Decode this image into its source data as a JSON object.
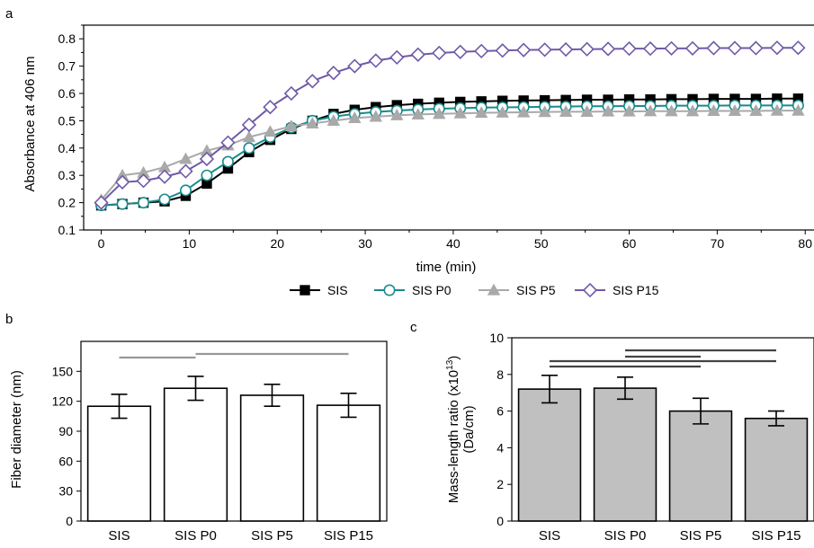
{
  "chart_data": [
    {
      "panel": "a",
      "type": "line",
      "xlabel": "time (min)",
      "ylabel": "Absorbance at 406 nm",
      "xlim": [
        -2,
        81
      ],
      "ylim": [
        0.1,
        0.85
      ],
      "xticks": [
        "0",
        "10",
        "20",
        "30",
        "40",
        "50",
        "60",
        "70",
        "80"
      ],
      "yticks": [
        "0.1",
        "0.2",
        "0.3",
        "0.4",
        "0.5",
        "0.6",
        "0.7",
        "0.8"
      ],
      "legend_position": "bottom",
      "x": [
        0,
        2.4,
        4.8,
        7.2,
        9.6,
        12,
        14.4,
        16.8,
        19.2,
        21.6,
        24,
        26.4,
        28.8,
        31.2,
        33.6,
        36,
        38.4,
        40.8,
        43.2,
        45.6,
        48,
        50.4,
        52.8,
        55.2,
        57.6,
        60,
        62.4,
        64.8,
        67.2,
        69.6,
        72,
        74.4,
        76.8,
        79.2,
        81.6
      ],
      "series": [
        {
          "name": "SIS",
          "marker": "square-filled",
          "color": "#000000",
          "values": [
            0.19,
            0.195,
            0.2,
            0.205,
            0.225,
            0.27,
            0.325,
            0.385,
            0.43,
            0.47,
            0.5,
            0.525,
            0.54,
            0.55,
            0.557,
            0.562,
            0.566,
            0.569,
            0.571,
            0.573,
            0.574,
            0.575,
            0.576,
            0.577,
            0.577,
            0.578,
            0.578,
            0.579,
            0.579,
            0.58,
            0.58,
            0.58,
            0.581,
            0.581,
            0.581
          ]
        },
        {
          "name": "SIS P0",
          "marker": "circle-open",
          "color": "#1a8a8a",
          "values": [
            0.19,
            0.195,
            0.2,
            0.212,
            0.245,
            0.3,
            0.35,
            0.4,
            0.44,
            0.475,
            0.5,
            0.515,
            0.525,
            0.532,
            0.537,
            0.541,
            0.544,
            0.546,
            0.548,
            0.549,
            0.55,
            0.551,
            0.552,
            0.553,
            0.553,
            0.554,
            0.554,
            0.555,
            0.555,
            0.555,
            0.556,
            0.556,
            0.556,
            0.556,
            0.557
          ]
        },
        {
          "name": "SIS P5",
          "marker": "triangle-filled",
          "color": "#a9a9a9",
          "values": [
            0.21,
            0.3,
            0.31,
            0.33,
            0.36,
            0.39,
            0.41,
            0.44,
            0.46,
            0.48,
            0.49,
            0.5,
            0.51,
            0.515,
            0.52,
            0.523,
            0.525,
            0.527,
            0.529,
            0.53,
            0.531,
            0.532,
            0.533,
            0.533,
            0.534,
            0.534,
            0.535,
            0.535,
            0.535,
            0.536,
            0.536,
            0.536,
            0.537,
            0.537,
            0.537
          ]
        },
        {
          "name": "SIS P15",
          "marker": "diamond-open",
          "color": "#6f5aa8",
          "values": [
            0.2,
            0.275,
            0.28,
            0.295,
            0.315,
            0.36,
            0.42,
            0.485,
            0.55,
            0.6,
            0.645,
            0.675,
            0.7,
            0.72,
            0.732,
            0.742,
            0.748,
            0.752,
            0.755,
            0.757,
            0.759,
            0.76,
            0.761,
            0.762,
            0.763,
            0.764,
            0.764,
            0.765,
            0.765,
            0.766,
            0.766,
            0.766,
            0.767,
            0.767,
            0.767
          ]
        }
      ]
    },
    {
      "panel": "b",
      "type": "bar",
      "ylabel": "Fiber diameter (nm)",
      "categories": [
        "SIS",
        "SIS P0",
        "SIS P5",
        "SIS P15"
      ],
      "values": [
        115,
        133,
        126,
        116
      ],
      "errors": [
        12,
        12,
        11,
        12
      ],
      "ylim": [
        0,
        180
      ],
      "yticks": [
        "0",
        "30",
        "60",
        "90",
        "120",
        "150"
      ],
      "bar_color": "#ffffff",
      "significance_lines": [
        [
          0,
          1
        ],
        [
          1,
          3
        ]
      ],
      "significance_color": "#999999"
    },
    {
      "panel": "c",
      "type": "bar",
      "ylabel_line1": "Mass-length ratio (x10",
      "ylabel_sup": "13",
      "ylabel_close": ")",
      "ylabel_line2": "(Da/cm)",
      "categories": [
        "SIS",
        "SIS P0",
        "SIS P5",
        "SIS P15"
      ],
      "values": [
        7.2,
        7.25,
        6.0,
        5.6
      ],
      "errors": [
        0.75,
        0.6,
        0.7,
        0.4
      ],
      "ylim": [
        0,
        10
      ],
      "yticks": [
        "0",
        "2",
        "4",
        "6",
        "8",
        "10"
      ],
      "bar_color": "#c0c0c0",
      "significance_lines": [
        [
          1,
          3
        ],
        [
          1,
          2
        ],
        [
          0,
          3
        ],
        [
          0,
          2
        ]
      ],
      "significance_color": "#444444"
    }
  ]
}
